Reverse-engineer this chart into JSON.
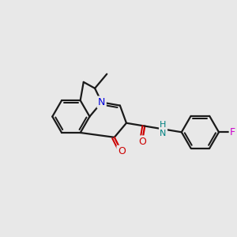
{
  "bg_color": "#e8e8e8",
  "bond_color": "#1a1a1a",
  "n_color": "#0000dd",
  "o_color": "#cc0000",
  "f_color": "#cc00cc",
  "nh_color": "#008080",
  "lw": 1.6,
  "dbl_off": 0.06,
  "bl": 0.48,
  "xlim": [
    -0.5,
    5.5
  ],
  "ylim": [
    0.8,
    5.2
  ]
}
